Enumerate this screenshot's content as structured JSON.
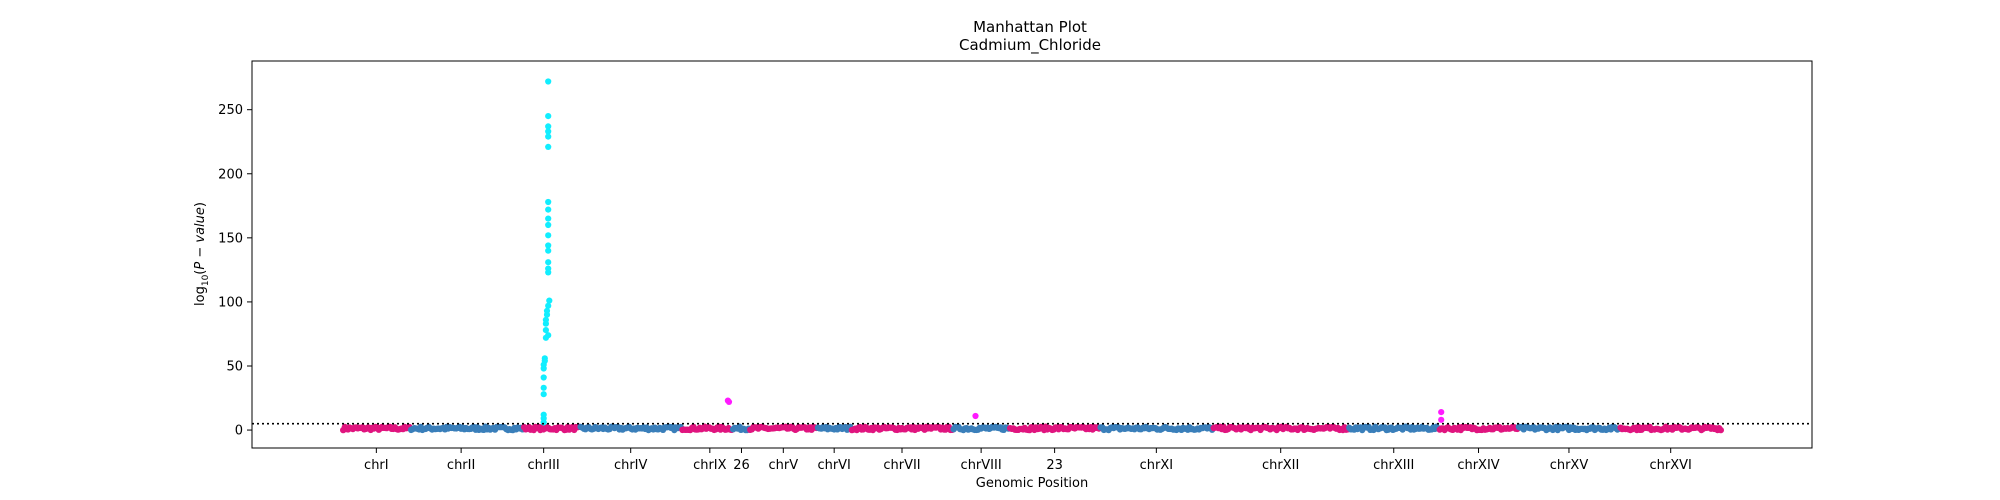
{
  "chart_data": {
    "type": "scatter",
    "title": "Manhattan Plot",
    "subtitle": "Cadmium_Chloride",
    "xlabel": "Genomic Position",
    "ylabel": "log10(P − value)",
    "ylim": [
      -14,
      288
    ],
    "yticks": [
      0,
      50,
      100,
      150,
      200,
      250
    ],
    "threshold": 5,
    "grid": false,
    "legend": "none",
    "colors": {
      "base_a": "#e0157f",
      "base_b": "#3a7fba",
      "significant_a": "#ff1aff",
      "significant_b": "#11eeff",
      "threshold_line": "#000000"
    },
    "chromosomes": [
      {
        "label": "chrI",
        "start": 0,
        "end": 6,
        "tick": 3,
        "color": "base_a"
      },
      {
        "label": "chrII",
        "start": 6,
        "end": 16,
        "tick": 10.5,
        "color": "base_b"
      },
      {
        "label": "chrIII",
        "start": 16,
        "end": 21,
        "tick": 17.8,
        "color": "base_a"
      },
      {
        "label": "chrIV",
        "start": 21,
        "end": 30,
        "tick": 25.5,
        "color": "base_b"
      },
      {
        "label": "chrIX",
        "start": 30,
        "end": 34.5,
        "tick": 32.5,
        "color": "base_a"
      },
      {
        "label": "26",
        "start": 34.5,
        "end": 36,
        "tick": 35.3,
        "color": "base_b"
      },
      {
        "label": "chrV",
        "start": 36,
        "end": 42,
        "tick": 39,
        "color": "base_a"
      },
      {
        "label": "chrVI",
        "start": 42,
        "end": 45,
        "tick": 43.5,
        "color": "base_b"
      },
      {
        "label": "chrVII",
        "start": 45,
        "end": 54,
        "tick": 49.5,
        "color": "base_a"
      },
      {
        "label": "chrVIII",
        "start": 54,
        "end": 59,
        "tick": 56.5,
        "color": "base_b"
      },
      {
        "label": "23",
        "start": 59,
        "end": 67,
        "tick": 63,
        "color": "base_a"
      },
      {
        "label": "chrXI",
        "start": 67,
        "end": 77,
        "tick": 72,
        "color": "base_b"
      },
      {
        "label": "chrXII",
        "start": 77,
        "end": 89,
        "tick": 83,
        "color": "base_a"
      },
      {
        "label": "chrXIII",
        "start": 89,
        "end": 97,
        "tick": 93,
        "color": "base_b"
      },
      {
        "label": "chrXIV",
        "start": 97,
        "end": 104,
        "tick": 100.5,
        "color": "base_a"
      },
      {
        "label": "chrXV",
        "start": 104,
        "end": 113,
        "tick": 108.5,
        "color": "base_b"
      },
      {
        "label": "chrXVI",
        "start": 113,
        "end": 122,
        "tick": 117.5,
        "color": "base_a"
      }
    ],
    "xlim": [
      -8,
      130
    ],
    "significant_points": [
      {
        "x": 18.2,
        "y": 272,
        "color": "significant_b"
      },
      {
        "x": 18.2,
        "y": 245,
        "color": "significant_b"
      },
      {
        "x": 18.2,
        "y": 237,
        "color": "significant_b"
      },
      {
        "x": 18.2,
        "y": 233,
        "color": "significant_b"
      },
      {
        "x": 18.2,
        "y": 229,
        "color": "significant_b"
      },
      {
        "x": 18.2,
        "y": 221,
        "color": "significant_b"
      },
      {
        "x": 18.2,
        "y": 178,
        "color": "significant_b"
      },
      {
        "x": 18.2,
        "y": 172,
        "color": "significant_b"
      },
      {
        "x": 18.2,
        "y": 165,
        "color": "significant_b"
      },
      {
        "x": 18.2,
        "y": 160,
        "color": "significant_b"
      },
      {
        "x": 18.2,
        "y": 152,
        "color": "significant_b"
      },
      {
        "x": 18.2,
        "y": 144,
        "color": "significant_b"
      },
      {
        "x": 18.2,
        "y": 140,
        "color": "significant_b"
      },
      {
        "x": 18.2,
        "y": 131,
        "color": "significant_b"
      },
      {
        "x": 18.2,
        "y": 126,
        "color": "significant_b"
      },
      {
        "x": 18.2,
        "y": 123,
        "color": "significant_b"
      },
      {
        "x": 18.3,
        "y": 101,
        "color": "significant_b"
      },
      {
        "x": 18.2,
        "y": 97,
        "color": "significant_b"
      },
      {
        "x": 18.1,
        "y": 93,
        "color": "significant_b"
      },
      {
        "x": 18.1,
        "y": 90,
        "color": "significant_b"
      },
      {
        "x": 18.0,
        "y": 86,
        "color": "significant_b"
      },
      {
        "x": 18.0,
        "y": 83,
        "color": "significant_b"
      },
      {
        "x": 18.0,
        "y": 78,
        "color": "significant_b"
      },
      {
        "x": 18.2,
        "y": 74,
        "color": "significant_b"
      },
      {
        "x": 18.0,
        "y": 72,
        "color": "significant_b"
      },
      {
        "x": 17.9,
        "y": 56,
        "color": "significant_b"
      },
      {
        "x": 17.9,
        "y": 54,
        "color": "significant_b"
      },
      {
        "x": 17.8,
        "y": 51,
        "color": "significant_b"
      },
      {
        "x": 17.8,
        "y": 48,
        "color": "significant_b"
      },
      {
        "x": 17.8,
        "y": 41,
        "color": "significant_b"
      },
      {
        "x": 17.8,
        "y": 33,
        "color": "significant_b"
      },
      {
        "x": 17.8,
        "y": 28,
        "color": "significant_b"
      },
      {
        "x": 17.8,
        "y": 12,
        "color": "significant_b"
      },
      {
        "x": 17.8,
        "y": 9,
        "color": "significant_b"
      },
      {
        "x": 17.8,
        "y": 6,
        "color": "significant_b"
      },
      {
        "x": 34.1,
        "y": 23,
        "color": "significant_a"
      },
      {
        "x": 34.2,
        "y": 22,
        "color": "significant_a"
      },
      {
        "x": 56.0,
        "y": 11,
        "color": "significant_a"
      },
      {
        "x": 97.2,
        "y": 14,
        "color": "significant_a"
      },
      {
        "x": 97.2,
        "y": 8,
        "color": "significant_a"
      }
    ]
  }
}
